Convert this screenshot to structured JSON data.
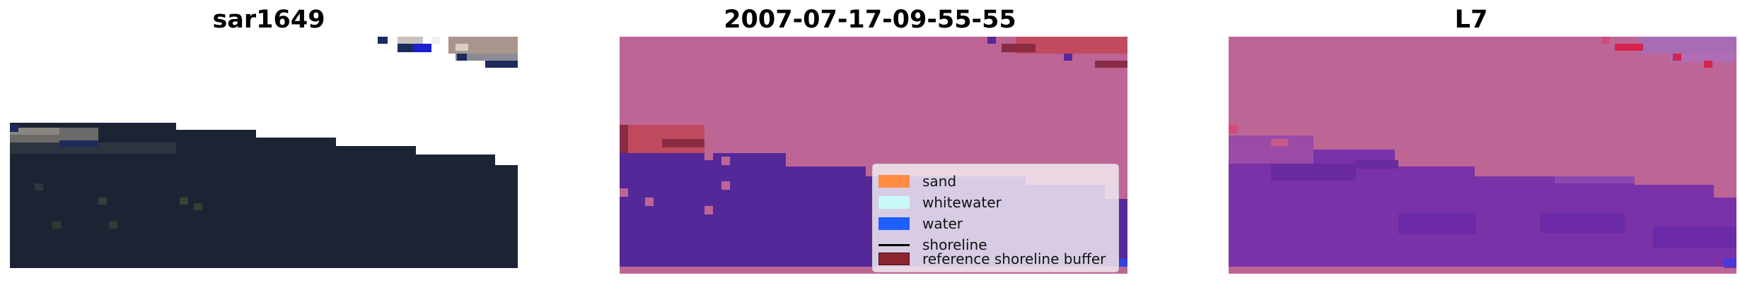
{
  "panels": [
    {
      "title": "sar1649"
    },
    {
      "title": "2007-07-17-09-55-55"
    },
    {
      "title": "L7"
    }
  ],
  "legend": {
    "items": [
      {
        "label": "sand",
        "color": "#ff8c42",
        "kind": "patch"
      },
      {
        "label": "whitewater",
        "color": "#c8f8f8",
        "kind": "patch"
      },
      {
        "label": "water",
        "color": "#1f5fff",
        "kind": "patch"
      },
      {
        "label": "shoreline",
        "color": "#000000",
        "kind": "line"
      },
      {
        "label": "reference shoreline buffer",
        "color": "#8b2530",
        "kind": "patch"
      }
    ]
  },
  "colors": {
    "land_overlay": "#bd6696",
    "water_overlay": "#55289a",
    "l7_water": "#7a32a8",
    "rgb_water": "#1d2535"
  }
}
